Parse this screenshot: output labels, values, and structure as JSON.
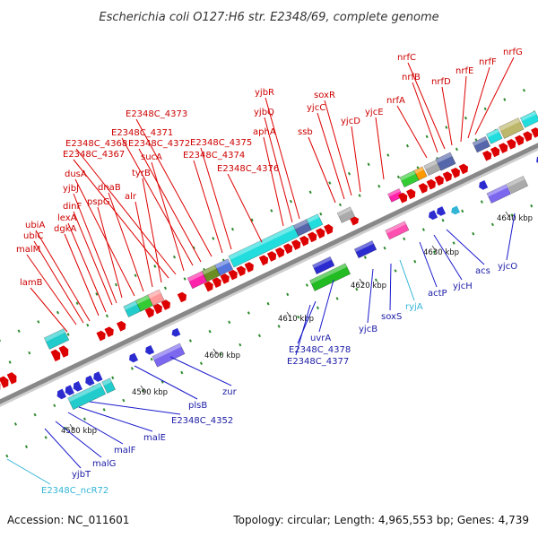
{
  "title": "Escherichia coli O127:H6 str. E2348/69, complete genome",
  "footer": {
    "accession": "Accession: NC_011601",
    "summary": "Topology: circular; Length: 4,965,553 bp; Genes: 4,739"
  },
  "colors": {
    "forward": "#dd0000",
    "reverse": "#1a1acc",
    "rna": "#33b5d6",
    "axis": "#888888",
    "tick": "#2e8b2e"
  },
  "scale_ticks": [
    "4580 kbp",
    "4590 kbp",
    "4600 kbp",
    "4610 kbp",
    "4620 kbp",
    "4630 kbp",
    "4640 kbp"
  ],
  "labels_top": [
    "lamB",
    "malM",
    "ubiC",
    "ubiA",
    "dgkA",
    "lexA",
    "dinF",
    "yjbJ",
    "pspG",
    "dusA",
    "dnaB",
    "alr",
    "tyrB",
    "E2348C_4367",
    "E2348C_4368",
    "sucA",
    "E2348C_4371",
    "E2348C_4372",
    "E2348C_4373",
    "E2348C_4374",
    "E2348C_4375",
    "E2348C_4376",
    "aphA",
    "yjbQ",
    "yjbR",
    "ssb",
    "yjcC",
    "soxR",
    "yjcD",
    "yjcE",
    "nrfA",
    "nrfB",
    "nrfC",
    "nrfD",
    "nrfE",
    "nrfF",
    "nrfG"
  ],
  "labels_bottom": [
    "E2348C_ncR72",
    "yjbT",
    "malG",
    "malF",
    "malE",
    "E2348C_4352",
    "plsB",
    "zur",
    "E2348C_4377",
    "E2348C_4378",
    "uvrA",
    "yjcB",
    "soxS",
    "ryjA",
    "actP",
    "yjcH",
    "acs",
    "yjcO"
  ]
}
